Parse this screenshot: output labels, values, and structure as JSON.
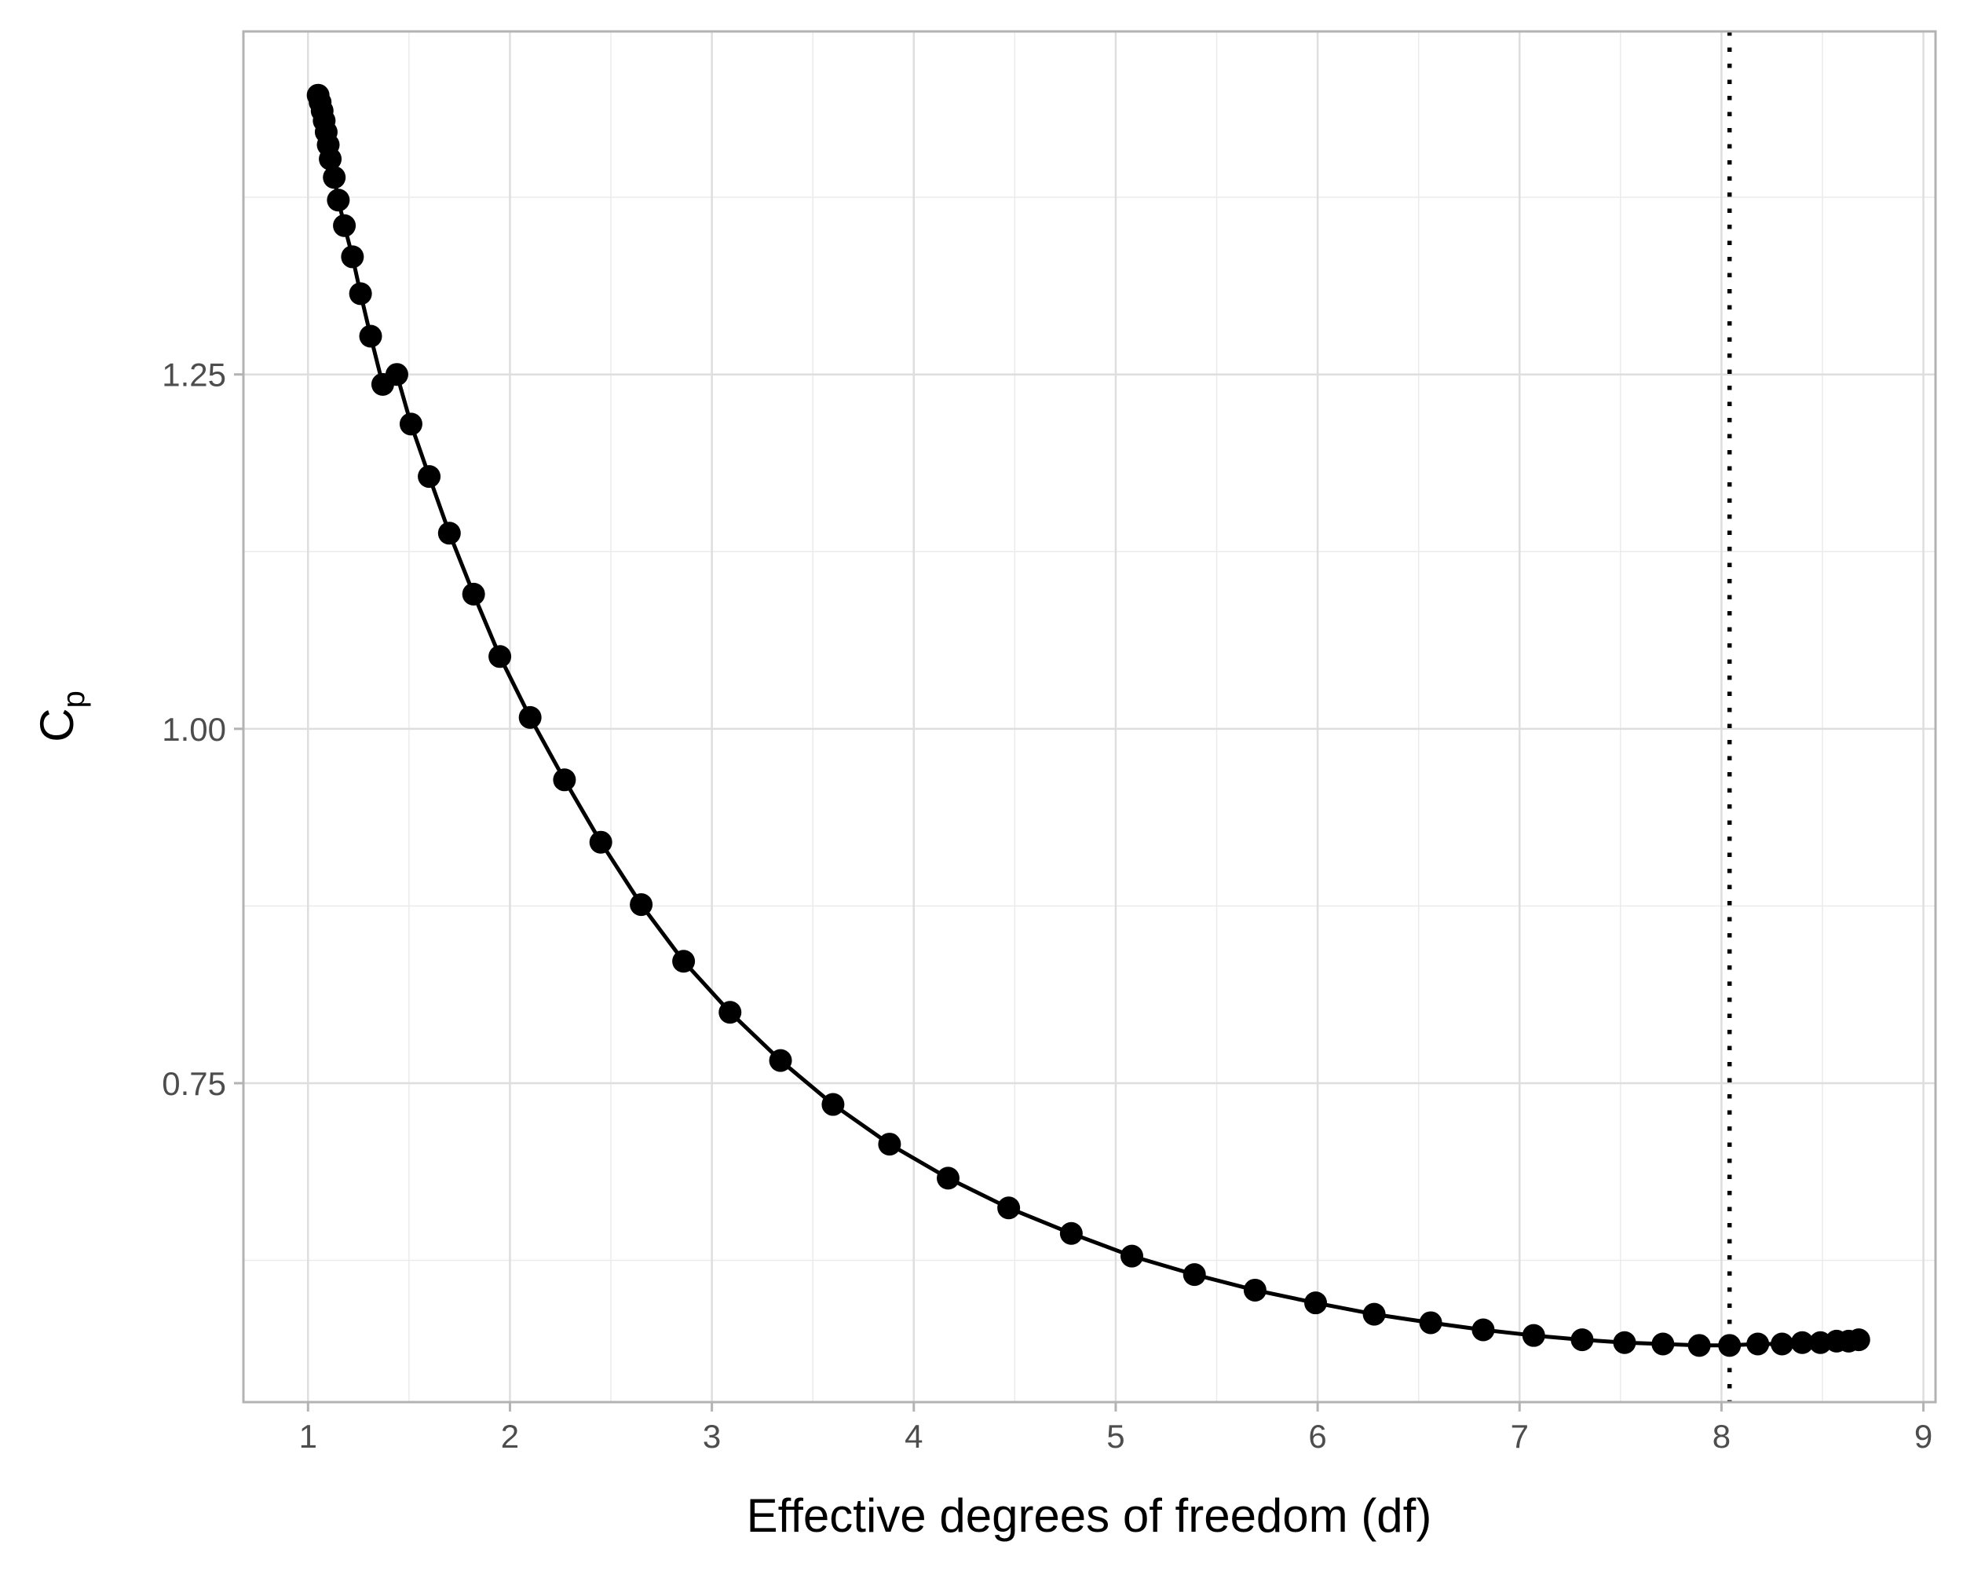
{
  "chart_data": {
    "type": "line",
    "title": "",
    "xlabel": "Effective degrees of freedom (df)",
    "ylabel": {
      "main": "C",
      "subscript": "p"
    },
    "xlim": [
      0.68,
      9.06
    ],
    "ylim": [
      0.525,
      1.492
    ],
    "x_ticks": [
      1,
      2,
      3,
      4,
      5,
      6,
      7,
      8,
      9
    ],
    "x_tick_labels": [
      "1",
      "2",
      "3",
      "4",
      "5",
      "6",
      "7",
      "8",
      "9"
    ],
    "y_ticks": [
      0.75,
      1.0,
      1.25
    ],
    "y_tick_labels": [
      "0.75",
      "1.00",
      "1.25"
    ],
    "x_minor_ticks": [
      1.5,
      2.5,
      3.5,
      4.5,
      5.5,
      6.5,
      7.5,
      8.5
    ],
    "y_minor_ticks": [
      0.625,
      0.875,
      1.125,
      1.375
    ],
    "grid": true,
    "reference_line": {
      "orientation": "vertical",
      "x": 8.04,
      "style": "dotted"
    },
    "series": [
      {
        "marker": "circle",
        "line": "solid",
        "color": "#000000",
        "x": [
          1.05,
          1.06,
          1.07,
          1.08,
          1.09,
          1.1,
          1.11,
          1.13,
          1.15,
          1.18,
          1.22,
          1.26,
          1.31,
          1.37,
          1.44,
          1.51,
          1.6,
          1.7,
          1.82,
          1.95,
          2.1,
          2.27,
          2.45,
          2.65,
          2.86,
          3.09,
          3.34,
          3.6,
          3.88,
          4.17,
          4.47,
          4.78,
          5.08,
          5.39,
          5.69,
          5.99,
          6.28,
          6.56,
          6.82,
          7.07,
          7.31,
          7.52,
          7.71,
          7.89,
          8.04,
          8.18,
          8.3,
          8.4,
          8.49,
          8.57,
          8.63,
          8.68
        ],
        "y": [
          1.447,
          1.442,
          1.436,
          1.429,
          1.421,
          1.412,
          1.402,
          1.389,
          1.373,
          1.355,
          1.333,
          1.307,
          1.277,
          1.243,
          1.25,
          1.215,
          1.178,
          1.138,
          1.095,
          1.051,
          1.008,
          0.964,
          0.92,
          0.876,
          0.836,
          0.8,
          0.766,
          0.735,
          0.707,
          0.683,
          0.662,
          0.644,
          0.628,
          0.615,
          0.604,
          0.595,
          0.587,
          0.581,
          0.576,
          0.572,
          0.569,
          0.567,
          0.566,
          0.565,
          0.565,
          0.566,
          0.566,
          0.567,
          0.567,
          0.568,
          0.568,
          0.569
        ]
      }
    ]
  }
}
